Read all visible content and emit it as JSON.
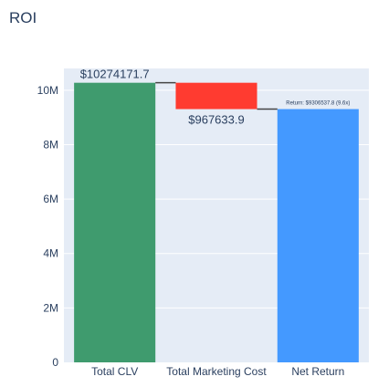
{
  "chart_data": {
    "type": "waterfall",
    "title": "ROI",
    "categories": [
      "Total CLV",
      "Total Marketing Cost",
      "Net Return"
    ],
    "measures": [
      "absolute",
      "relative",
      "total"
    ],
    "values": [
      10274171.7,
      -967633.9,
      9306537.8
    ],
    "data_labels": [
      "$10274171.7",
      "$967633.9",
      ""
    ],
    "y_ticks": [
      {
        "value": 0,
        "label": "0"
      },
      {
        "value": 2000000,
        "label": "2M"
      },
      {
        "value": 4000000,
        "label": "4M"
      },
      {
        "value": 6000000,
        "label": "6M"
      },
      {
        "value": 8000000,
        "label": "8M"
      },
      {
        "value": 10000000,
        "label": "10M"
      }
    ],
    "ylim": [
      0,
      10800000
    ],
    "annotation": "Return: $9306537.8 (9.6x)",
    "colors": {
      "increasing": "#3f9b6e",
      "decreasing": "#ff3b30",
      "total": "#4499ff",
      "connector": "#444444",
      "plot_bg": "#e5ecf6",
      "grid": "#ffffff",
      "text": "#2a3f5f"
    },
    "grid": true,
    "legend": false
  }
}
